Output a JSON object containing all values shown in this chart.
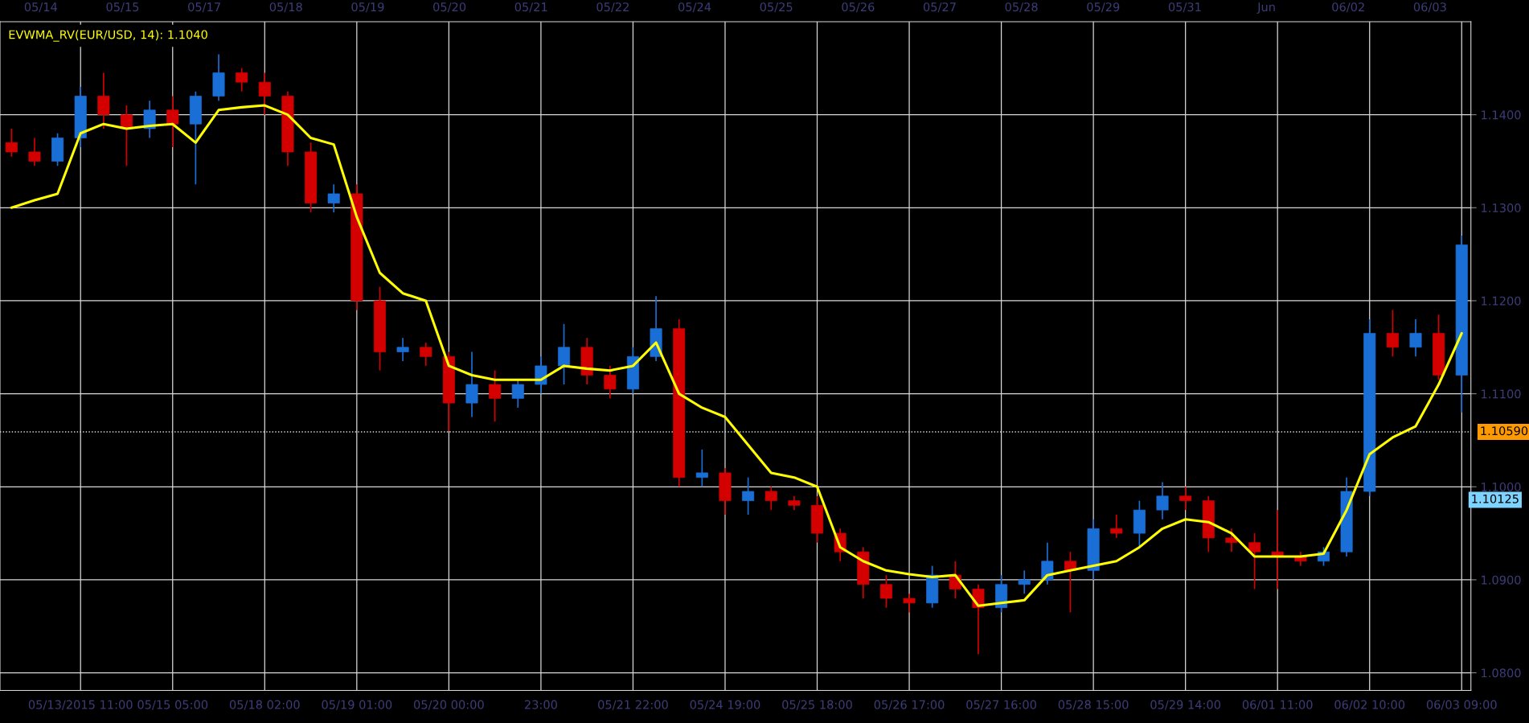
{
  "chart_data": {
    "type": "candlestick",
    "categories": [
      null,
      null,
      null,
      "05/13/2015 11:00",
      null,
      null,
      null,
      "05/15 05:00",
      null,
      null,
      null,
      "05/18 02:00",
      null,
      null,
      null,
      "05/19 01:00",
      null,
      null,
      null,
      "05/20 00:00",
      null,
      null,
      null,
      "23:00",
      null,
      null,
      null,
      "05/21 22:00",
      null,
      null,
      null,
      "05/24 19:00",
      null,
      null,
      null,
      "05/25 18:00",
      null,
      null,
      null,
      "05/26 17:00",
      null,
      null,
      null,
      "05/27 16:00",
      null,
      null,
      null,
      "05/28 15:00",
      null,
      null,
      null,
      "05/29 14:00",
      null,
      null,
      null,
      "06/01 11:00",
      null,
      null,
      null,
      "06/02 10:00",
      null,
      null,
      null,
      "06/03 09:00"
    ],
    "ohlc": [
      [
        1.137,
        1.1385,
        1.1355,
        1.136
      ],
      [
        1.136,
        1.1375,
        1.1345,
        1.135
      ],
      [
        1.135,
        1.138,
        1.1345,
        1.1375
      ],
      [
        1.1375,
        1.143,
        1.1365,
        1.142
      ],
      [
        1.142,
        1.1445,
        1.1385,
        1.14
      ],
      [
        1.14,
        1.141,
        1.1345,
        1.1385
      ],
      [
        1.1385,
        1.1415,
        1.1375,
        1.1405
      ],
      [
        1.1405,
        1.142,
        1.1365,
        1.139
      ],
      [
        1.139,
        1.1425,
        1.1325,
        1.142
      ],
      [
        1.142,
        1.1465,
        1.1415,
        1.1445
      ],
      [
        1.1445,
        1.145,
        1.1425,
        1.1435
      ],
      [
        1.1435,
        1.1445,
        1.14,
        1.142
      ],
      [
        1.142,
        1.1425,
        1.1345,
        1.136
      ],
      [
        1.136,
        1.137,
        1.1295,
        1.1305
      ],
      [
        1.1305,
        1.1325,
        1.1295,
        1.1315
      ],
      [
        1.1315,
        1.1325,
        1.119,
        1.12
      ],
      [
        1.12,
        1.1215,
        1.1125,
        1.1145
      ],
      [
        1.1145,
        1.116,
        1.1135,
        1.115
      ],
      [
        1.115,
        1.1155,
        1.113,
        1.114
      ],
      [
        1.114,
        1.1145,
        1.106,
        1.109
      ],
      [
        1.109,
        1.1145,
        1.1075,
        1.111
      ],
      [
        1.111,
        1.1125,
        1.107,
        1.1095
      ],
      [
        1.1095,
        1.1115,
        1.1085,
        1.111
      ],
      [
        1.111,
        1.114,
        1.11,
        1.113
      ],
      [
        1.113,
        1.1175,
        1.111,
        1.115
      ],
      [
        1.115,
        1.116,
        1.111,
        1.112
      ],
      [
        1.112,
        1.113,
        1.1095,
        1.1105
      ],
      [
        1.1105,
        1.115,
        1.11,
        1.114
      ],
      [
        1.114,
        1.1205,
        1.1135,
        1.117
      ],
      [
        1.117,
        1.118,
        1.1,
        1.101
      ],
      [
        1.101,
        1.104,
        1.1,
        1.1015
      ],
      [
        1.1015,
        1.102,
        1.097,
        1.0985
      ],
      [
        1.0985,
        1.101,
        1.097,
        1.0995
      ],
      [
        1.0995,
        1.1,
        1.0975,
        1.0985
      ],
      [
        1.0985,
        1.099,
        1.0975,
        1.098
      ],
      [
        1.098,
        1.099,
        1.094,
        1.095
      ],
      [
        1.095,
        1.0955,
        1.092,
        1.093
      ],
      [
        1.093,
        1.0935,
        1.088,
        1.0895
      ],
      [
        1.0895,
        1.0905,
        1.087,
        1.088
      ],
      [
        1.088,
        1.0885,
        1.0865,
        1.0875
      ],
      [
        1.0875,
        1.0915,
        1.087,
        1.0905
      ],
      [
        1.0905,
        1.092,
        1.088,
        1.089
      ],
      [
        1.089,
        1.0895,
        1.082,
        1.087
      ],
      [
        1.087,
        1.0905,
        1.0865,
        1.0895
      ],
      [
        1.0895,
        1.091,
        1.0885,
        1.09
      ],
      [
        1.09,
        1.094,
        1.0895,
        1.092
      ],
      [
        1.092,
        1.093,
        1.0865,
        1.091
      ],
      [
        1.091,
        1.0965,
        1.09,
        1.0955
      ],
      [
        1.0955,
        1.097,
        1.0945,
        1.095
      ],
      [
        1.095,
        1.0985,
        1.0935,
        1.0975
      ],
      [
        1.0975,
        1.1005,
        1.0965,
        1.099
      ],
      [
        1.099,
        1.1,
        1.0975,
        1.0985
      ],
      [
        1.0985,
        1.099,
        1.093,
        1.0945
      ],
      [
        1.0945,
        1.0955,
        1.093,
        1.094
      ],
      [
        1.094,
        1.095,
        1.089,
        1.093
      ],
      [
        1.093,
        1.0975,
        1.089,
        1.0925
      ],
      [
        1.0925,
        1.093,
        1.0915,
        1.092
      ],
      [
        1.092,
        1.0935,
        1.0915,
        1.093
      ],
      [
        1.093,
        1.101,
        1.0925,
        1.0995
      ],
      [
        1.0995,
        1.118,
        1.099,
        1.1165
      ],
      [
        1.1165,
        1.119,
        1.114,
        1.115
      ],
      [
        1.115,
        1.118,
        1.114,
        1.1165
      ],
      [
        1.1165,
        1.1185,
        1.1115,
        1.112
      ],
      [
        1.112,
        1.127,
        1.108,
        1.126
      ]
    ],
    "colors": [
      "#d40000",
      "#d40000",
      "#1a6fd6",
      "#1a6fd6",
      "#d40000",
      "#d40000",
      "#1a6fd6",
      "#d40000",
      "#1a6fd6",
      "#1a6fd6",
      "#d40000",
      "#d40000",
      "#d40000",
      "#d40000",
      "#1a6fd6",
      "#d40000",
      "#d40000",
      "#1a6fd6",
      "#d40000",
      "#d40000",
      "#1a6fd6",
      "#d40000",
      "#1a6fd6",
      "#1a6fd6",
      "#1a6fd6",
      "#d40000",
      "#d40000",
      "#1a6fd6",
      "#1a6fd6",
      "#d40000",
      "#1a6fd6",
      "#d40000",
      "#1a6fd6",
      "#d40000",
      "#d40000",
      "#d40000",
      "#d40000",
      "#d40000",
      "#d40000",
      "#d40000",
      "#1a6fd6",
      "#d40000",
      "#d40000",
      "#1a6fd6",
      "#1a6fd6",
      "#1a6fd6",
      "#d40000",
      "#1a6fd6",
      "#d40000",
      "#1a6fd6",
      "#1a6fd6",
      "#d40000",
      "#d40000",
      "#d40000",
      "#d40000",
      "#d40000",
      "#d40000",
      "#1a6fd6",
      "#1a6fd6",
      "#1a6fd6",
      "#d40000",
      "#1a6fd6",
      "#d40000",
      "#1a6fd6"
    ],
    "series": [
      {
        "name": "EVWMA_RV(EUR/USD, 14): 1.1040",
        "type": "line",
        "color": "#ffff00",
        "values": [
          1.13,
          1.1308,
          1.1315,
          1.138,
          1.139,
          1.1385,
          1.1388,
          1.139,
          1.137,
          1.1405,
          1.1408,
          1.141,
          1.14,
          1.1375,
          1.1368,
          1.129,
          1.123,
          1.1208,
          1.12,
          1.113,
          1.112,
          1.1115,
          1.1115,
          1.1115,
          1.113,
          1.1127,
          1.1125,
          1.113,
          1.1155,
          1.11,
          1.1085,
          1.1075,
          1.1045,
          1.1015,
          1.101,
          1.1,
          1.0935,
          1.092,
          1.091,
          1.0906,
          1.0903,
          1.0905,
          1.0872,
          1.0875,
          1.0878,
          1.0905,
          1.091,
          1.0915,
          1.092,
          1.0935,
          1.0955,
          1.0965,
          1.0962,
          1.095,
          1.0925,
          1.0925,
          1.0925,
          1.0928,
          1.0975,
          1.1035,
          1.1053,
          1.1065,
          1.111,
          1.1165
        ]
      }
    ],
    "ylim": [
      1.0781,
      1.15
    ],
    "yticks": [
      {
        "value": 1.08,
        "label": "1.0800"
      },
      {
        "value": 1.09,
        "label": "1.0900"
      },
      {
        "value": 1.1,
        "label": "1.1000"
      },
      {
        "value": 1.11,
        "label": "1.1100"
      },
      {
        "value": 1.12,
        "label": "1.1200"
      },
      {
        "value": 1.13,
        "label": "1.1300"
      },
      {
        "value": 1.14,
        "label": "1.1400"
      }
    ],
    "ref_lines": [
      {
        "axis": "y",
        "value": 1.1059,
        "label": "1.10590",
        "color": "#dddddd",
        "line_style": "dotted"
      }
    ],
    "annotations": [
      "05/14",
      "05/15",
      "05/17",
      "05/18",
      "05/19",
      "05/20",
      "05/21",
      "05/22",
      "05/24",
      "05/25",
      "05/26",
      "05/27",
      "05/28",
      "05/29",
      "05/31",
      "Jun",
      "06/02",
      "06/03",
      "1.10125"
    ],
    "grid": true,
    "legend": "top left"
  }
}
